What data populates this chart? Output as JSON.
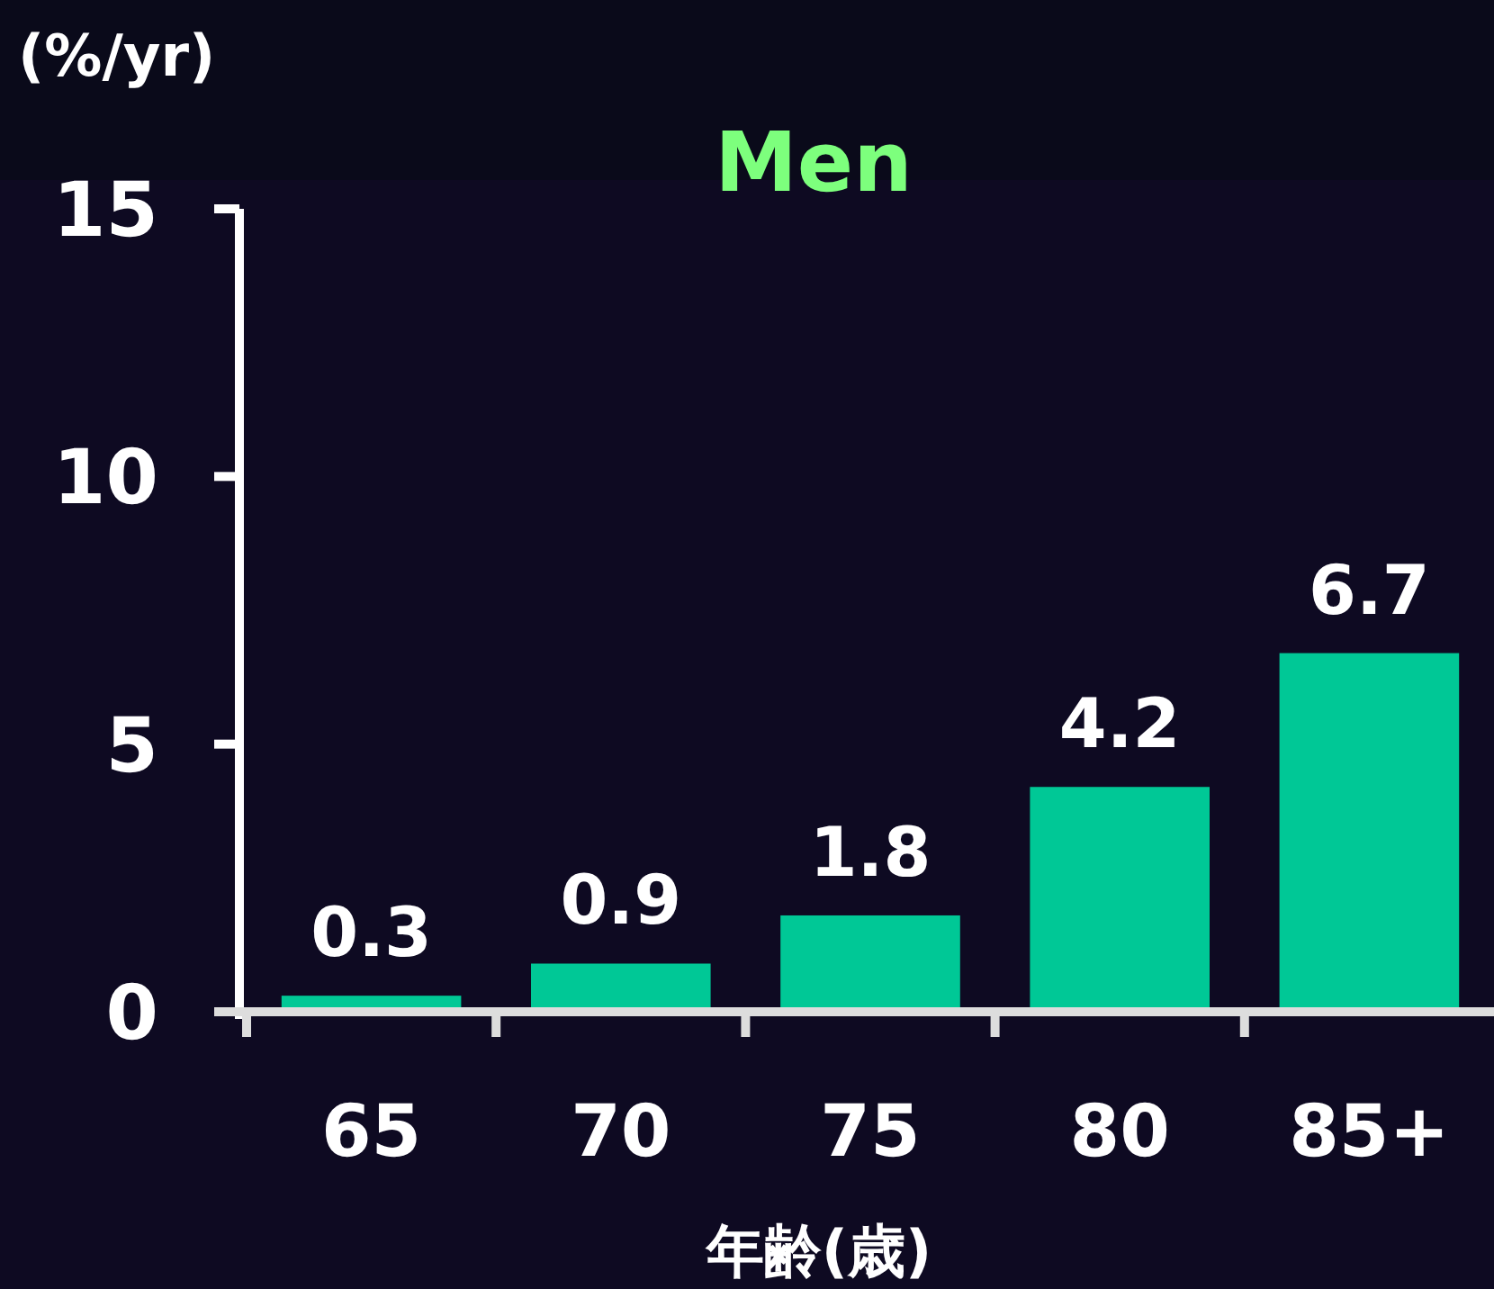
{
  "chart_data": {
    "type": "bar",
    "title": "Men",
    "ylabel": "(%/yr)",
    "xlabel": "年齢(歳)",
    "categories": [
      "65",
      "70",
      "75",
      "80",
      "85+"
    ],
    "values": [
      0.3,
      0.9,
      1.8,
      4.2,
      6.7
    ],
    "color": "#00c896",
    "ylim": [
      0,
      15
    ],
    "yticks": [
      0,
      5,
      10,
      15
    ],
    "data_labels": true
  }
}
